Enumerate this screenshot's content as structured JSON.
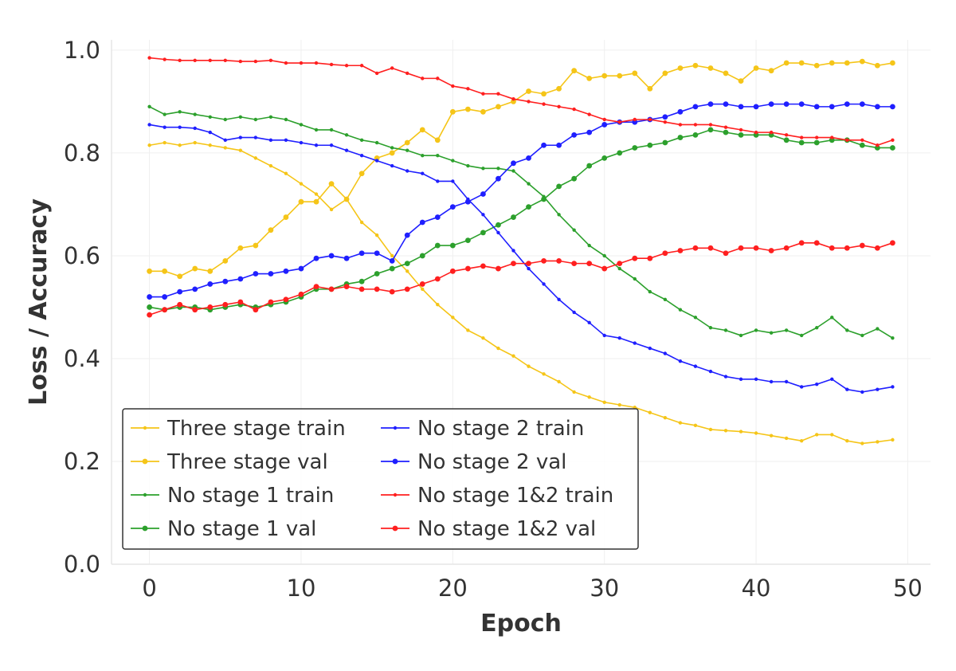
{
  "chart_data": {
    "type": "line",
    "title": "",
    "xlabel": "Epoch",
    "ylabel": "Loss / Accuracy",
    "xlim": [
      -2.5,
      51.5
    ],
    "ylim": [
      0.0,
      1.02
    ],
    "xticks": [
      0,
      10,
      20,
      30,
      40,
      50
    ],
    "yticks": [
      0.0,
      0.2,
      0.4,
      0.6,
      0.8,
      1.0
    ],
    "xtick_labels": [
      "0",
      "10",
      "20",
      "30",
      "40",
      "50"
    ],
    "ytick_labels": [
      "0.0",
      "0.2",
      "0.4",
      "0.6",
      "0.8",
      "1.0"
    ],
    "grid": true,
    "legend_position": "lower-left",
    "x": [
      0,
      1,
      2,
      3,
      4,
      5,
      6,
      7,
      8,
      9,
      10,
      11,
      12,
      13,
      14,
      15,
      16,
      17,
      18,
      19,
      20,
      21,
      22,
      23,
      24,
      25,
      26,
      27,
      28,
      29,
      30,
      31,
      32,
      33,
      34,
      35,
      36,
      37,
      38,
      39,
      40,
      41,
      42,
      43,
      44,
      45,
      46,
      47,
      48,
      49
    ],
    "series": [
      {
        "name": "Three stage train",
        "color": "#f5c518",
        "marker": "small",
        "values": [
          0.815,
          0.82,
          0.815,
          0.82,
          0.815,
          0.81,
          0.805,
          0.79,
          0.775,
          0.76,
          0.74,
          0.72,
          0.69,
          0.71,
          0.665,
          0.64,
          0.6,
          0.57,
          0.535,
          0.505,
          0.48,
          0.455,
          0.44,
          0.42,
          0.405,
          0.385,
          0.37,
          0.355,
          0.335,
          0.325,
          0.315,
          0.31,
          0.305,
          0.295,
          0.285,
          0.275,
          0.27,
          0.262,
          0.26,
          0.258,
          0.255,
          0.25,
          0.245,
          0.24,
          0.252,
          0.252,
          0.24,
          0.235,
          0.238,
          0.242
        ]
      },
      {
        "name": "Three stage val",
        "color": "#f5c518",
        "marker": "large",
        "values": [
          0.57,
          0.57,
          0.56,
          0.575,
          0.57,
          0.59,
          0.615,
          0.62,
          0.65,
          0.675,
          0.705,
          0.705,
          0.74,
          0.71,
          0.76,
          0.79,
          0.8,
          0.82,
          0.845,
          0.825,
          0.88,
          0.885,
          0.88,
          0.89,
          0.9,
          0.92,
          0.915,
          0.925,
          0.96,
          0.945,
          0.95,
          0.95,
          0.955,
          0.925,
          0.955,
          0.965,
          0.97,
          0.965,
          0.955,
          0.94,
          0.965,
          0.96,
          0.975,
          0.975,
          0.97,
          0.975,
          0.975,
          0.978,
          0.97,
          0.975
        ]
      },
      {
        "name": "No stage 1 train",
        "color": "#2ca02c",
        "marker": "small",
        "values": [
          0.89,
          0.875,
          0.88,
          0.875,
          0.87,
          0.865,
          0.87,
          0.865,
          0.87,
          0.865,
          0.855,
          0.845,
          0.845,
          0.835,
          0.825,
          0.82,
          0.81,
          0.805,
          0.795,
          0.795,
          0.785,
          0.775,
          0.77,
          0.77,
          0.765,
          0.74,
          0.715,
          0.68,
          0.65,
          0.62,
          0.6,
          0.575,
          0.555,
          0.53,
          0.515,
          0.495,
          0.48,
          0.46,
          0.455,
          0.445,
          0.455,
          0.45,
          0.455,
          0.445,
          0.46,
          0.48,
          0.455,
          0.445,
          0.458,
          0.44
        ]
      },
      {
        "name": "No stage 1 val",
        "color": "#2ca02c",
        "marker": "large",
        "values": [
          0.5,
          0.495,
          0.5,
          0.5,
          0.495,
          0.5,
          0.505,
          0.5,
          0.505,
          0.51,
          0.52,
          0.535,
          0.535,
          0.545,
          0.55,
          0.565,
          0.575,
          0.585,
          0.6,
          0.62,
          0.62,
          0.63,
          0.645,
          0.66,
          0.675,
          0.695,
          0.71,
          0.735,
          0.75,
          0.775,
          0.79,
          0.8,
          0.81,
          0.815,
          0.82,
          0.83,
          0.835,
          0.845,
          0.84,
          0.835,
          0.835,
          0.835,
          0.825,
          0.82,
          0.82,
          0.825,
          0.825,
          0.815,
          0.81,
          0.81
        ]
      },
      {
        "name": "No stage 2 train",
        "color": "#1f1fff",
        "marker": "small",
        "values": [
          0.855,
          0.85,
          0.85,
          0.848,
          0.84,
          0.825,
          0.83,
          0.83,
          0.825,
          0.825,
          0.82,
          0.815,
          0.815,
          0.805,
          0.795,
          0.785,
          0.775,
          0.765,
          0.76,
          0.745,
          0.745,
          0.71,
          0.68,
          0.645,
          0.61,
          0.575,
          0.545,
          0.515,
          0.49,
          0.47,
          0.445,
          0.44,
          0.43,
          0.42,
          0.41,
          0.395,
          0.385,
          0.375,
          0.365,
          0.36,
          0.36,
          0.355,
          0.355,
          0.345,
          0.35,
          0.36,
          0.34,
          0.335,
          0.34,
          0.345
        ]
      },
      {
        "name": "No stage 2 val",
        "color": "#1f1fff",
        "marker": "large",
        "values": [
          0.52,
          0.52,
          0.53,
          0.535,
          0.545,
          0.55,
          0.555,
          0.565,
          0.565,
          0.57,
          0.575,
          0.595,
          0.6,
          0.595,
          0.605,
          0.605,
          0.59,
          0.64,
          0.665,
          0.675,
          0.695,
          0.705,
          0.72,
          0.75,
          0.78,
          0.79,
          0.815,
          0.815,
          0.835,
          0.84,
          0.855,
          0.86,
          0.86,
          0.865,
          0.87,
          0.88,
          0.89,
          0.895,
          0.895,
          0.89,
          0.89,
          0.895,
          0.895,
          0.895,
          0.89,
          0.89,
          0.895,
          0.895,
          0.89,
          0.89
        ]
      },
      {
        "name": "No stage 1&2 train",
        "color": "#ff1f1f",
        "marker": "small",
        "values": [
          0.985,
          0.982,
          0.98,
          0.98,
          0.98,
          0.98,
          0.978,
          0.978,
          0.98,
          0.975,
          0.975,
          0.975,
          0.972,
          0.97,
          0.97,
          0.955,
          0.965,
          0.955,
          0.945,
          0.945,
          0.93,
          0.925,
          0.915,
          0.915,
          0.905,
          0.9,
          0.895,
          0.89,
          0.885,
          0.875,
          0.865,
          0.86,
          0.865,
          0.865,
          0.86,
          0.855,
          0.855,
          0.855,
          0.85,
          0.845,
          0.84,
          0.84,
          0.835,
          0.83,
          0.83,
          0.83,
          0.825,
          0.825,
          0.815,
          0.825
        ]
      },
      {
        "name": "No stage 1&2 val",
        "color": "#ff1f1f",
        "marker": "large",
        "values": [
          0.485,
          0.495,
          0.505,
          0.495,
          0.5,
          0.505,
          0.51,
          0.495,
          0.51,
          0.515,
          0.525,
          0.54,
          0.535,
          0.54,
          0.535,
          0.535,
          0.53,
          0.535,
          0.545,
          0.555,
          0.57,
          0.575,
          0.58,
          0.575,
          0.585,
          0.585,
          0.59,
          0.59,
          0.585,
          0.585,
          0.575,
          0.585,
          0.595,
          0.595,
          0.605,
          0.61,
          0.615,
          0.615,
          0.605,
          0.615,
          0.615,
          0.61,
          0.615,
          0.625,
          0.625,
          0.615,
          0.615,
          0.62,
          0.615,
          0.625
        ]
      }
    ]
  }
}
